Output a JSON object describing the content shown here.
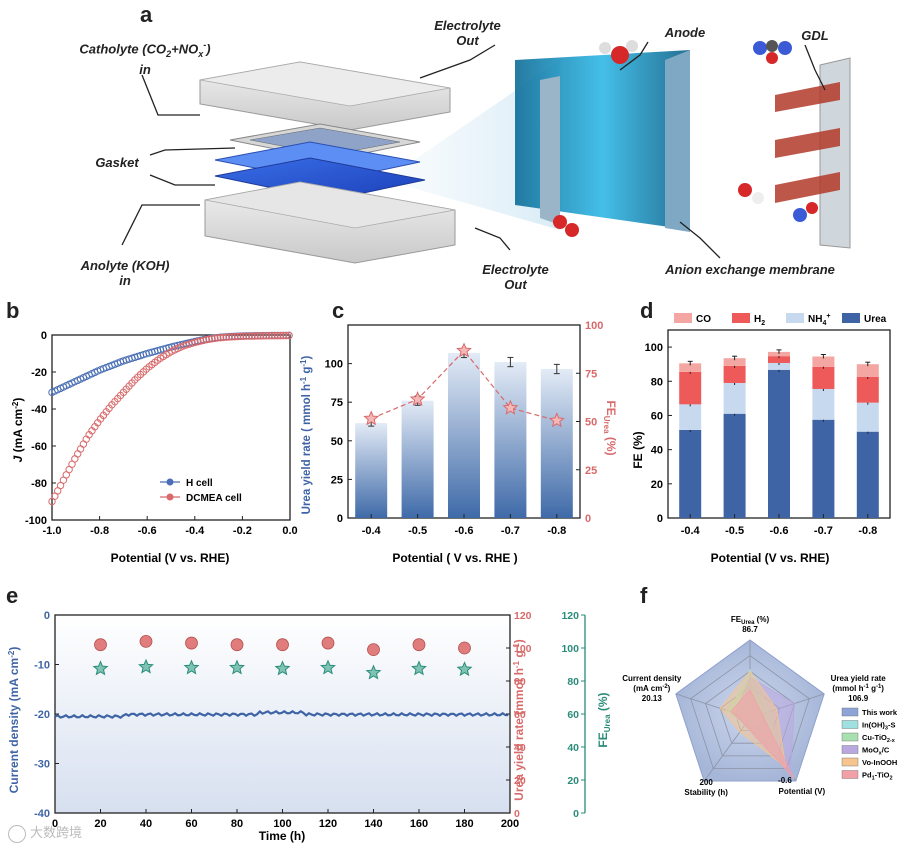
{
  "panel_a": {
    "letter": "a",
    "labels": {
      "catholyte_1": "Catholyte (CO",
      "catholyte_sub": "2",
      "catholyte_2": "+NO",
      "catholyte_subx": "x",
      "catholyte_sup": "-",
      "catholyte_3": ")",
      "catholyte_in": "in",
      "electrolyte_out_top_1": "Electrolyte",
      "electrolyte_out_top_2": "Out",
      "gasket": "Gasket",
      "anolyte_1": "Anolyte (KOH)",
      "anolyte_2": "in",
      "electrolyte_out_bottom_1": "Electrolyte",
      "electrolyte_out_bottom_2": "Out",
      "anode": "Anode",
      "gdl": "GDL",
      "membrane": "Anion exchange membrane"
    }
  },
  "chart_data": [
    {
      "id": "b",
      "letter": "b",
      "type": "scatter",
      "xlabel": "Potential (V vs. RHE)",
      "ylabel_main": "J",
      "ylabel_rest": " (mA cm",
      "ylabel_sup": "-2",
      "ylabel_close": ")",
      "xlim": [
        -1.0,
        0.0
      ],
      "ylim": [
        -100,
        0
      ],
      "xticks": [
        -1.0,
        -0.8,
        -0.6,
        -0.4,
        -0.2,
        0.0
      ],
      "xtick_labels": [
        "-1.0",
        "-0.8",
        "-0.6",
        "-0.4",
        "-0.2",
        "0.0"
      ],
      "yticks": [
        0,
        -20,
        -40,
        -60,
        -80,
        -100
      ],
      "ytick_labels": [
        "0",
        "-20",
        "-40",
        "-60",
        "-80",
        "-100"
      ],
      "series": [
        {
          "name": "H cell",
          "color": "#4a6fb5",
          "x": [
            -1.0,
            -0.9,
            -0.8,
            -0.7,
            -0.6,
            -0.5,
            -0.4,
            -0.35,
            -0.3,
            -0.25,
            -0.2,
            -0.1,
            0.0
          ],
          "y": [
            -31,
            -25,
            -19,
            -14,
            -10,
            -6.5,
            -3.5,
            -2.2,
            -1.3,
            -0.8,
            -0.5,
            -0.3,
            -0.2
          ]
        },
        {
          "name": "DCMEA cell",
          "color": "#d9696a",
          "x": [
            -1.0,
            -0.95,
            -0.9,
            -0.85,
            -0.8,
            -0.75,
            -0.7,
            -0.65,
            -0.6,
            -0.55,
            -0.5,
            -0.45,
            -0.4,
            -0.35,
            -0.3,
            -0.25,
            -0.2,
            -0.1,
            0.0
          ],
          "y": [
            -90,
            -78,
            -66,
            -55,
            -46,
            -38,
            -31,
            -24,
            -18,
            -13,
            -9,
            -6,
            -4,
            -2.5,
            -1.5,
            -1,
            -0.7,
            -0.4,
            -0.3
          ]
        }
      ]
    },
    {
      "id": "c",
      "letter": "c",
      "type": "bar",
      "xlabel": "Potential ( V vs. RHE )",
      "ylabel_left": "Urea yield rate ( mmol h",
      "ylabel_left_sup1": "-1",
      "ylabel_left_mid": " g",
      "ylabel_left_sup2": "-1",
      "ylabel_left_close": ")",
      "ylabel_right": "FE",
      "ylabel_right_sub": "Urea",
      "ylabel_right_close": " (%)",
      "categories": [
        "-0.4",
        "-0.5",
        "-0.6",
        "-0.7",
        "-0.8"
      ],
      "bar_values": [
        61.5,
        76,
        106.9,
        101,
        96.5
      ],
      "bar_errors": [
        2,
        3,
        3,
        3,
        3
      ],
      "fe_values": [
        51.5,
        61.5,
        86.7,
        57,
        50.5
      ],
      "ylim_left": [
        0,
        125
      ],
      "yticks_left": [
        0,
        25,
        50,
        75,
        100
      ],
      "ylim_right": [
        0,
        100
      ],
      "yticks_right": [
        0,
        25,
        50,
        75,
        100
      ],
      "bar_color": "#3f6aa8",
      "line_color": "#d9696a"
    },
    {
      "id": "d",
      "letter": "d",
      "type": "bar",
      "xlabel": "Potential (V vs. RHE)",
      "ylabel": "FE (%)",
      "categories": [
        "-0.4",
        "-0.5",
        "-0.6",
        "-0.7",
        "-0.8"
      ],
      "ylim": [
        0,
        110
      ],
      "yticks": [
        0,
        20,
        40,
        60,
        80,
        100
      ],
      "series": [
        {
          "name": "Urea",
          "color": "#3f64a6",
          "values": [
            51.5,
            61,
            86.7,
            57.5,
            50.5
          ]
        },
        {
          "name": "NH4+",
          "name_base": "NH",
          "name_sub": "4",
          "name_sup": "+",
          "color": "#c7d9ee",
          "values": [
            15,
            18,
            4,
            18,
            17
          ]
        },
        {
          "name": "H2",
          "name_base": "H",
          "name_sub": "2",
          "color": "#ee5a5a",
          "values": [
            19,
            10,
            4,
            13,
            15
          ]
        },
        {
          "name": "CO",
          "color": "#f4a7a2",
          "values": [
            5,
            4.5,
            2.5,
            6,
            7.5
          ]
        }
      ]
    },
    {
      "id": "e",
      "letter": "e",
      "type": "scatter",
      "xlabel": "Time (h)",
      "ylabel_left": "Current density (mA cm",
      "ylabel_left_sup": "-2",
      "ylabel_left_close": ")",
      "ylabel_mid": "Urea yield rate (mmol h",
      "ylabel_mid_sup1": "-1",
      "ylabel_mid_g": " g",
      "ylabel_mid_sup2": "-1",
      "ylabel_mid_close": ")",
      "ylabel_right": "FE",
      "ylabel_right_sub": "Urea",
      "ylabel_right_close": " (%)",
      "xlim": [
        0,
        200
      ],
      "xticks": [
        0,
        20,
        40,
        60,
        80,
        100,
        120,
        140,
        160,
        180,
        200
      ],
      "ylim_left": [
        -40,
        0
      ],
      "yticks_left": [
        0,
        -10,
        -20,
        -30,
        -40
      ],
      "ylim_mid": [
        0,
        120
      ],
      "yticks_mid": [
        0,
        20,
        40,
        60,
        80,
        100,
        120
      ],
      "ylim_right": [
        0,
        120
      ],
      "yticks_right": [
        0,
        20,
        40,
        60,
        80,
        100,
        120
      ],
      "current_density": -20.1,
      "x_points": [
        20,
        40,
        60,
        80,
        100,
        120,
        140,
        160,
        180
      ],
      "yield_values": [
        102,
        104,
        103,
        102,
        102,
        103,
        99,
        102,
        100
      ],
      "fe_values": [
        87.5,
        88.5,
        88,
        88,
        87.5,
        88,
        85,
        87.5,
        87
      ],
      "left_color": "#3f64a6",
      "mid_color": "#d96a6a",
      "right_color": "#2a8c7a"
    },
    {
      "id": "f",
      "letter": "f",
      "type": "radar",
      "axes": [
        {
          "title_main": "FE",
          "title_sub": "Urea",
          "title_rest": " (%)",
          "value_label": "86.7"
        },
        {
          "title_main": "Urea yield rate",
          "title_line2": "(mmol h",
          "sup1": "-1",
          "g": " g",
          "sup2": "-1",
          "close": ")",
          "value_label": "106.9"
        },
        {
          "title_main": "Potential (V)",
          "value_label": "-0.6"
        },
        {
          "title_main": "Stability (h)",
          "value_label": "200"
        },
        {
          "title_main": "Current density",
          "title_line2": "(mA cm",
          "sup": "-2",
          "close": ")",
          "value_label": "20.13"
        }
      ],
      "series": [
        {
          "name": "This work",
          "color": "#8fa4d6",
          "values": [
            1.0,
            1.0,
            1.0,
            1.0,
            1.0
          ]
        },
        {
          "name": "In(OH)3-S",
          "name_base": "In(OH)",
          "name_sub": "3",
          "name_rest": "-S",
          "color": "#9fe0e0",
          "values": [
            0.62,
            0.28,
            0.62,
            0.12,
            0.28
          ]
        },
        {
          "name": "Cu-TiO2-x",
          "name_base": "Cu-TiO",
          "name_sub": "2-x",
          "color": "#a8e0b0",
          "values": [
            0.5,
            0.22,
            0.5,
            0.1,
            0.32
          ]
        },
        {
          "name": "MoOx/C",
          "name_base": "MoO",
          "name_sub": "x",
          "name_rest": "/C",
          "color": "#b9a8e0",
          "values": [
            0.52,
            0.6,
            0.88,
            0.12,
            0.2
          ]
        },
        {
          "name": "Vo-InOOH",
          "color": "#f6c48f",
          "values": [
            0.6,
            0.36,
            0.78,
            0.22,
            0.4
          ]
        },
        {
          "name": "Pd1-TiO2",
          "name_base": "Pd",
          "name_sub": "1",
          "name_rest": "-TiO",
          "name_sub2": "2",
          "color": "#f2a0a8",
          "values": [
            0.36,
            0.16,
            0.96,
            0.1,
            0.26
          ]
        }
      ]
    }
  ],
  "watermark": "大数跨境"
}
